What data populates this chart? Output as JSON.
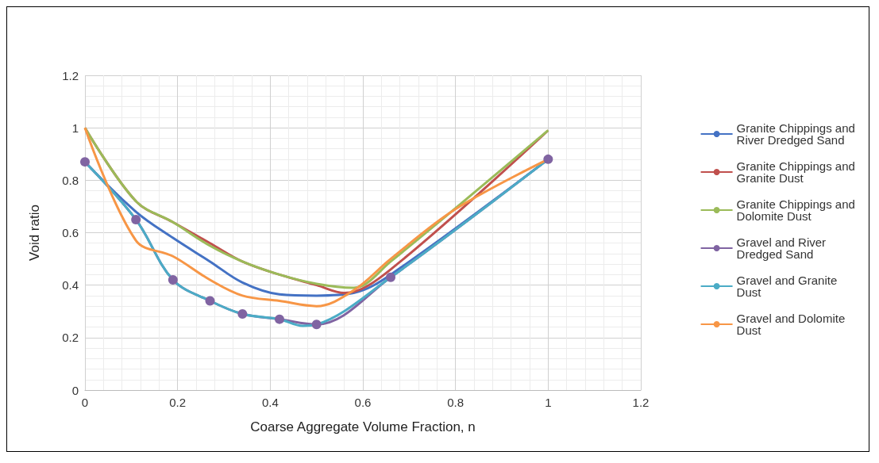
{
  "chart_data": {
    "type": "line",
    "xlabel": "Coarse Aggregate Volume Fraction, n",
    "ylabel": "Void ratio",
    "xlim": [
      0,
      1.2
    ],
    "xticks": [
      0,
      0.2,
      0.4,
      0.6,
      0.8,
      1,
      1.2
    ],
    "ylim": [
      0,
      1.2
    ],
    "yticks": [
      0,
      0.2,
      0.4,
      0.6,
      0.8,
      1,
      1.2
    ],
    "grid": true,
    "legend": "right",
    "series": [
      {
        "name": "Granite Chippings and River Dredged Sand",
        "color": "#4472c4",
        "marker": "none",
        "x": [
          0,
          0.11,
          0.19,
          0.27,
          0.34,
          0.42,
          0.5,
          0.58,
          0.66,
          1
        ],
        "values": [
          0.87,
          0.68,
          0.58,
          0.49,
          0.41,
          0.365,
          0.36,
          0.37,
          0.44,
          0.88
        ]
      },
      {
        "name": "Granite Chippings and Granite Dust",
        "color": "#c0504d",
        "marker": "none",
        "x": [
          0,
          0.11,
          0.19,
          0.27,
          0.34,
          0.42,
          0.5,
          0.56,
          0.66,
          1
        ],
        "values": [
          1,
          0.72,
          0.64,
          0.56,
          0.49,
          0.44,
          0.4,
          0.37,
          0.46,
          0.99
        ]
      },
      {
        "name": "Granite Chippings and Dolomite Dust",
        "color": "#9bbb59",
        "marker": "none",
        "x": [
          0,
          0.11,
          0.19,
          0.27,
          0.34,
          0.42,
          0.5,
          0.58,
          0.66,
          1
        ],
        "values": [
          1,
          0.72,
          0.64,
          0.55,
          0.49,
          0.44,
          0.405,
          0.39,
          0.49,
          0.99
        ]
      },
      {
        "name": "Gravel and River Dredged Sand",
        "color": "#8064a2",
        "marker": "circle",
        "x": [
          0,
          0.11,
          0.19,
          0.27,
          0.34,
          0.42,
          0.5,
          0.66,
          1
        ],
        "values": [
          0.87,
          0.65,
          0.42,
          0.34,
          0.29,
          0.27,
          0.25,
          0.43,
          0.88
        ]
      },
      {
        "name": "Gravel and Granite Dust",
        "color": "#4bacc6",
        "marker": "none",
        "x": [
          0,
          0.11,
          0.19,
          0.27,
          0.34,
          0.42,
          0.47,
          0.5,
          0.66,
          1
        ],
        "values": [
          0.87,
          0.65,
          0.42,
          0.34,
          0.29,
          0.27,
          0.245,
          0.25,
          0.43,
          0.88
        ]
      },
      {
        "name": "Gravel and Dolomite Dust",
        "color": "#f79646",
        "marker": "none",
        "x": [
          0,
          0.11,
          0.19,
          0.27,
          0.34,
          0.42,
          0.5,
          0.58,
          0.66,
          0.8,
          1
        ],
        "values": [
          1,
          0.57,
          0.51,
          0.42,
          0.36,
          0.34,
          0.32,
          0.38,
          0.5,
          0.69,
          0.88
        ]
      }
    ]
  }
}
